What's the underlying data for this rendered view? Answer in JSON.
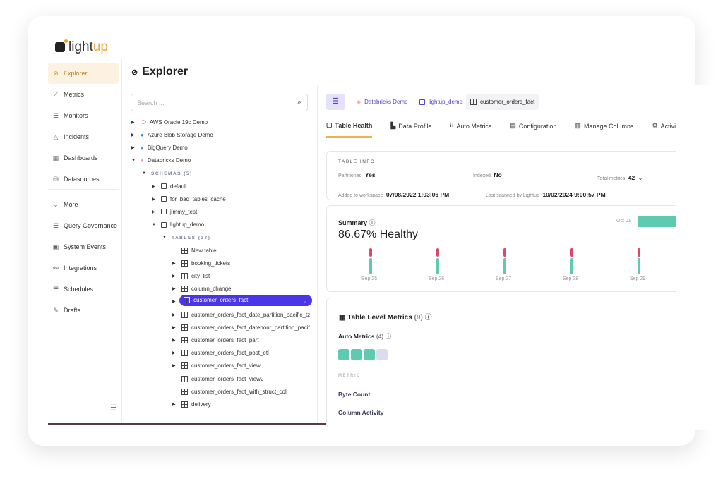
{
  "brand": {
    "name_a": "light",
    "name_b": "up"
  },
  "sidebar": {
    "items": [
      {
        "label": "Explorer",
        "icon": "compass-icon",
        "active": true
      },
      {
        "label": "Metrics",
        "icon": "chart-icon"
      },
      {
        "label": "Monitors",
        "icon": "list-icon"
      },
      {
        "label": "Incidents",
        "icon": "warning-icon"
      },
      {
        "label": "Dashboards",
        "icon": "grid-icon"
      },
      {
        "label": "Datasources",
        "icon": "database-icon"
      },
      {
        "label": "More",
        "icon": "chevron-down-icon"
      },
      {
        "label": "Query Governance",
        "icon": "list-icon"
      },
      {
        "label": "System Events",
        "icon": "calendar-icon"
      },
      {
        "label": "Integrations",
        "icon": "link-icon"
      },
      {
        "label": "Schedules",
        "icon": "list-icon"
      },
      {
        "label": "Drafts",
        "icon": "edit-icon"
      }
    ]
  },
  "page": {
    "title": "Explorer"
  },
  "search": {
    "placeholder": "Search ..."
  },
  "tree": {
    "datasources": [
      "AWS Oracle 19c Demo",
      "Azure Blob Storage Demo",
      "BigQuery Demo",
      "Databricks Demo"
    ],
    "schemas_label": "SCHEMAS (5)",
    "schemas": [
      "default",
      "for_bad_tables_cache",
      "jimmy_test",
      "lightup_demo"
    ],
    "tables_label": "TABLES (37)",
    "tables": [
      "New table",
      "booking_tickets",
      "city_list",
      "column_change",
      "customer_orders_fact",
      "customer_orders_fact_date_partition_pacific_tz",
      "customer_orders_fact_datehour_partition_pacif",
      "customer_orders_fact_part",
      "customer_orders_fact_post_etl",
      "customer_orders_fact_view",
      "customer_orders_fact_view2",
      "customer_orders_fact_with_struct_col",
      "delivery"
    ]
  },
  "breadcrumb": [
    "Databricks Demo",
    "lightup_demo",
    "customer_orders_fact"
  ],
  "tabs": [
    "Table Health",
    "Data Profile",
    "Auto Metrics",
    "Configuration",
    "Manage Columns",
    "Activity"
  ],
  "table_info": {
    "heading": "TABLE INFO",
    "partitioned_label": "Partitioned",
    "partitioned": "Yes",
    "indexed_label": "Indexed",
    "indexed": "No",
    "total_label": "Total metrics",
    "total": "42",
    "added_label": "Added to workspace",
    "added": "07/08/2022 1:03:06 PM",
    "scanned_label": "Last scanned by Lightup",
    "scanned": "10/02/2024 9:00:57 PM"
  },
  "summary": {
    "title": "Summary",
    "health": "86.67% Healthy",
    "days": [
      "Sep 25",
      "Sep 26",
      "Sep 27",
      "Sep 28",
      "Sep 29"
    ],
    "latest": "Oct 01",
    "colors": {
      "healthy": "#5ecbb0",
      "unhealthy": "#e0456a"
    }
  },
  "metrics": {
    "title": "Table Level Metrics",
    "count": "(9)",
    "auto_title": "Auto Metrics",
    "auto_count": "(4)",
    "auto_status": [
      "healthy",
      "healthy",
      "healthy",
      "none"
    ],
    "column_header": "METRIC",
    "rows": [
      "Byte Count",
      "Column Activity"
    ]
  }
}
